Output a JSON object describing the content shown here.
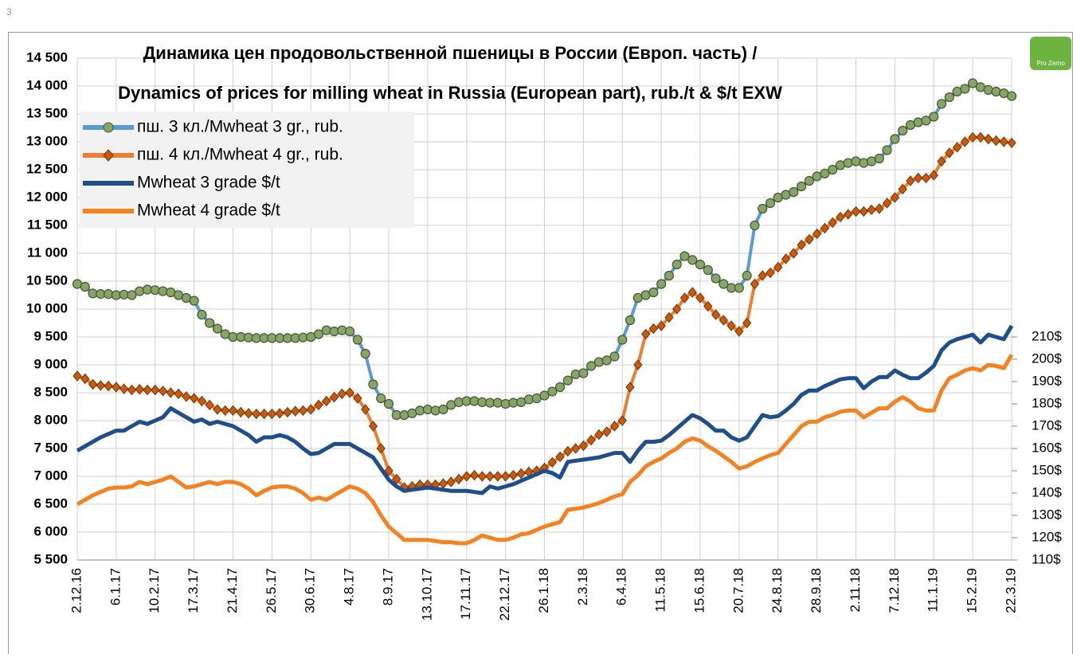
{
  "page_number": "3",
  "logo": "Pro Zerno",
  "chart_data": {
    "type": "line",
    "title": "Динамика цен продовольственной пшеницы в России (Европ. часть) /",
    "subtitle": "Dynamics of prices for milling wheat in Russia (European part), rub./t & $/t EXW",
    "categories": [
      "2.12.16",
      null,
      null,
      null,
      null,
      "6.1.17",
      null,
      null,
      null,
      null,
      "10.2.17",
      null,
      null,
      null,
      null,
      "17.3.17",
      null,
      null,
      null,
      null,
      "21.4.17",
      null,
      null,
      null,
      null,
      "26.5.17",
      null,
      null,
      null,
      null,
      "30.6.17",
      null,
      null,
      null,
      null,
      "4.8.17",
      null,
      null,
      null,
      null,
      "8.9.17",
      null,
      null,
      null,
      null,
      "13.10.17",
      null,
      null,
      null,
      null,
      "17.11.17",
      null,
      null,
      null,
      null,
      "22.12.17",
      null,
      null,
      null,
      null,
      "26.1.18",
      null,
      null,
      null,
      null,
      "2.3.18",
      null,
      null,
      null,
      null,
      "6.4.18",
      null,
      null,
      null,
      null,
      "11.5.18",
      null,
      null,
      null,
      null,
      "15.6.18",
      null,
      null,
      null,
      null,
      "20.7.18",
      null,
      null,
      null,
      null,
      "24.8.18",
      null,
      null,
      null,
      null,
      "28.9.18",
      null,
      null,
      null,
      null,
      "2.11.18",
      null,
      null,
      null,
      null,
      "7.12.18",
      null,
      null,
      null,
      null,
      "11.1.19",
      null,
      null,
      null,
      null,
      "15.2.19",
      null,
      null,
      null,
      null,
      "22.3.19"
    ],
    "series": [
      {
        "name": "пш. 3 кл./Mwheat 3 gr., rub.",
        "color": "#5b9bd5",
        "marker": "circle",
        "marker_color": "#8aa36a",
        "values": [
          10450,
          10400,
          10280,
          10270,
          10270,
          10250,
          10260,
          10250,
          10320,
          10350,
          10340,
          10320,
          10300,
          10250,
          10200,
          10150,
          9900,
          9750,
          9650,
          9550,
          9500,
          9500,
          9490,
          9480,
          9480,
          9480,
          9480,
          9480,
          9480,
          9490,
          9500,
          9550,
          9620,
          9600,
          9620,
          9600,
          9450,
          9200,
          8650,
          8400,
          8300,
          8100,
          8100,
          8130,
          8180,
          8200,
          8180,
          8200,
          8280,
          8330,
          8350,
          8350,
          8330,
          8320,
          8320,
          8300,
          8320,
          8330,
          8380,
          8400,
          8450,
          8520,
          8600,
          8720,
          8830,
          8850,
          8980,
          9050,
          9080,
          9150,
          9450,
          9800,
          10200,
          10250,
          10300,
          10450,
          10600,
          10800,
          10950,
          10880,
          10800,
          10700,
          10550,
          10450,
          10380,
          10380,
          10600,
          11500,
          11800,
          11900,
          12000,
          12050,
          12100,
          12200,
          12300,
          12380,
          12430,
          12500,
          12580,
          12620,
          12650,
          12620,
          12650,
          12700,
          12850,
          13050,
          13200,
          13300,
          13350,
          13380,
          13450,
          13680,
          13800,
          13900,
          13950,
          14050,
          13980,
          13930,
          13900,
          13870,
          13820
        ]
      },
      {
        "name": "пш. 4 кл./Mwheat 4 gr., rub.",
        "color": "#ed7d31",
        "marker": "diamond",
        "marker_color": "#c55a11",
        "values": [
          8800,
          8750,
          8650,
          8630,
          8620,
          8600,
          8570,
          8550,
          8560,
          8550,
          8550,
          8530,
          8500,
          8480,
          8430,
          8400,
          8350,
          8280,
          8200,
          8180,
          8180,
          8150,
          8130,
          8120,
          8120,
          8120,
          8130,
          8150,
          8170,
          8180,
          8200,
          8280,
          8350,
          8420,
          8480,
          8500,
          8400,
          8200,
          7900,
          7500,
          7100,
          6950,
          6800,
          6820,
          6850,
          6850,
          6850,
          6870,
          6900,
          6950,
          7000,
          7020,
          7000,
          7000,
          7000,
          7000,
          7020,
          7050,
          7080,
          7100,
          7150,
          7250,
          7350,
          7450,
          7500,
          7550,
          7650,
          7750,
          7800,
          7900,
          8000,
          8600,
          9000,
          9550,
          9650,
          9700,
          9850,
          10000,
          10200,
          10300,
          10200,
          10050,
          9900,
          9800,
          9700,
          9600,
          9750,
          10450,
          10600,
          10650,
          10750,
          10900,
          11000,
          11150,
          11250,
          11350,
          11450,
          11550,
          11650,
          11700,
          11750,
          11750,
          11780,
          11800,
          11900,
          12000,
          12150,
          12300,
          12350,
          12350,
          12400,
          12650,
          12800,
          12900,
          13000,
          13080,
          13080,
          13050,
          13020,
          13000,
          12980
        ]
      },
      {
        "name": "Mwheat 3 grade $/t",
        "color": "#1f4e8c",
        "axis": "y2",
        "values": [
          159,
          161,
          163,
          165,
          166.5,
          168,
          168,
          170,
          172,
          171,
          172.5,
          174,
          178,
          176,
          174,
          172,
          173,
          171,
          172,
          171,
          170,
          168,
          166,
          163,
          165,
          165,
          166,
          165,
          163,
          160,
          157.5,
          158,
          160,
          162,
          162,
          162,
          160,
          158,
          156,
          151,
          146,
          143,
          141,
          141.5,
          142,
          142.5,
          142,
          141.5,
          141,
          141,
          141,
          140.5,
          140,
          143,
          142,
          143,
          144,
          145.5,
          147,
          148.5,
          150,
          149,
          147,
          154,
          154.5,
          155,
          155.5,
          156,
          157,
          158,
          158,
          154,
          159,
          163,
          163,
          163.5,
          166,
          169,
          172,
          175,
          173.5,
          171,
          168,
          168,
          165,
          163.5,
          165,
          170,
          175,
          174,
          174.5,
          177,
          180,
          184,
          186,
          186,
          188,
          189.5,
          191,
          191.5,
          191.5,
          187,
          190,
          192,
          192,
          195,
          193,
          191.5,
          191.5,
          194,
          197,
          204,
          207.5,
          209,
          210,
          211,
          207.5,
          211,
          210,
          209,
          215
        ]
      },
      {
        "name": "Mwheat 4 grade $/t",
        "color": "#f58220",
        "axis": "y2",
        "values": [
          135,
          137,
          139,
          140.5,
          142,
          142.5,
          142.5,
          143,
          145,
          144,
          145,
          146,
          147.5,
          145,
          142.5,
          143,
          144,
          145,
          144,
          145,
          145,
          144,
          142,
          139,
          141,
          142.5,
          143,
          143,
          142,
          140,
          137,
          138,
          137,
          139,
          141,
          143,
          142,
          140,
          136,
          130,
          125,
          122,
          119,
          119,
          119,
          119,
          118.5,
          118,
          118,
          117.5,
          117.5,
          119,
          121,
          120,
          119,
          119,
          120,
          121.5,
          122,
          123.5,
          125,
          126,
          127,
          132.5,
          133,
          133.5,
          134.5,
          135.5,
          137,
          138.5,
          139.5,
          145,
          148,
          152,
          154,
          155.5,
          158,
          160,
          163,
          164.5,
          163.5,
          161,
          159,
          156.5,
          154,
          151,
          152,
          154,
          155.5,
          157,
          158,
          162,
          166,
          170,
          172,
          172,
          174,
          175,
          176.5,
          177,
          177,
          174,
          176,
          178,
          178,
          181,
          183,
          181,
          178,
          177,
          177,
          186,
          191.5,
          193,
          195,
          196,
          195,
          197.5,
          197,
          196,
          202
        ]
      }
    ],
    "ylim": [
      5500,
      14500
    ],
    "yticks": [
      {
        "value": 5500,
        "label": "5 500"
      },
      {
        "value": 6000,
        "label": "6 000"
      },
      {
        "value": 6500,
        "label": "6 500"
      },
      {
        "value": 7000,
        "label": "7 000"
      },
      {
        "value": 7500,
        "label": "7 500"
      },
      {
        "value": 8000,
        "label": "8 000"
      },
      {
        "value": 8500,
        "label": "8 500"
      },
      {
        "value": 9000,
        "label": "9 000"
      },
      {
        "value": 9500,
        "label": "9 500"
      },
      {
        "value": 10000,
        "label": "10 000"
      },
      {
        "value": 10500,
        "label": "10 500"
      },
      {
        "value": 11000,
        "label": "11 000"
      },
      {
        "value": 11500,
        "label": "11 500"
      },
      {
        "value": 12000,
        "label": "12 000"
      },
      {
        "value": 12500,
        "label": "12 500"
      },
      {
        "value": 13000,
        "label": "13 000"
      },
      {
        "value": 13500,
        "label": "13 500"
      },
      {
        "value": 14000,
        "label": "14 000"
      },
      {
        "value": 14500,
        "label": "14 500"
      }
    ],
    "y2lim": [
      110,
      335
    ],
    "y2ticks": [
      {
        "value": 110,
        "label": "110$"
      },
      {
        "value": 120,
        "label": "120$"
      },
      {
        "value": 130,
        "label": "130$"
      },
      {
        "value": 140,
        "label": "140$"
      },
      {
        "value": 150,
        "label": "150$"
      },
      {
        "value": 160,
        "label": "160$"
      },
      {
        "value": 170,
        "label": "170$"
      },
      {
        "value": 180,
        "label": "180$"
      },
      {
        "value": 190,
        "label": "190$"
      },
      {
        "value": 200,
        "label": "200$"
      },
      {
        "value": 210,
        "label": "210$"
      }
    ],
    "grid": true,
    "legend": "upper left"
  }
}
